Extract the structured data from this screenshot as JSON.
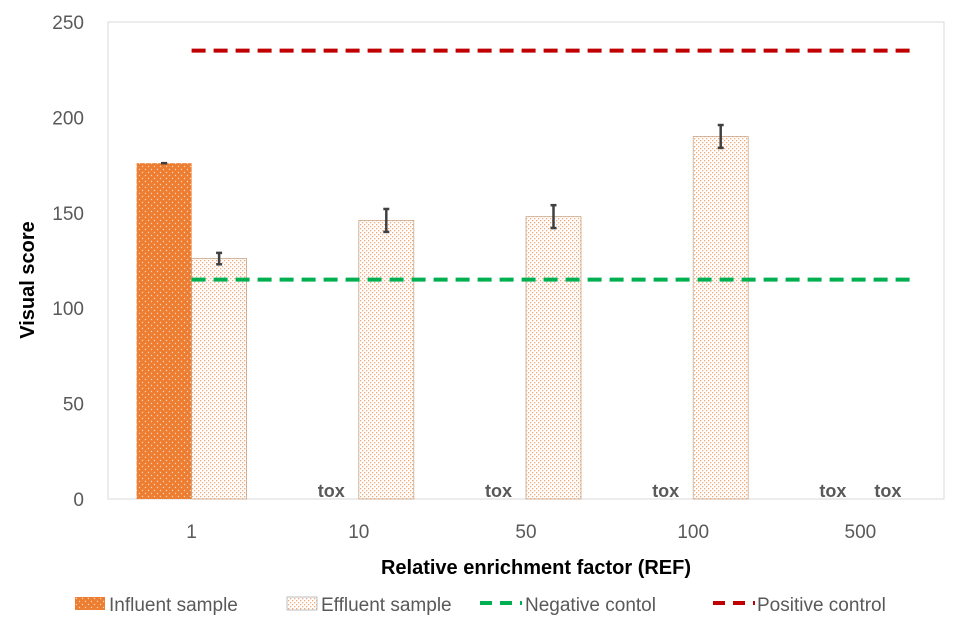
{
  "chart_data": {
    "type": "bar",
    "title": "",
    "xlabel": "Relative enrichment factor (REF)",
    "ylabel": "Visual score",
    "ylim": [
      0,
      250
    ],
    "yticks": [
      0,
      50,
      100,
      150,
      200,
      250
    ],
    "categories": [
      "1",
      "10",
      "50",
      "100",
      "500"
    ],
    "series": [
      {
        "name": "Influent sample",
        "values": [
          176,
          null,
          null,
          null,
          null
        ],
        "labels": [
          "",
          "tox",
          "tox",
          "tox",
          "tox"
        ],
        "errors": [
          0,
          null,
          null,
          null,
          null
        ],
        "color": "#ED7D31",
        "pattern": "dotted-solid"
      },
      {
        "name": "Effluent sample",
        "values": [
          126,
          146,
          148,
          190,
          null
        ],
        "labels": [
          "",
          "",
          "",
          "",
          "tox"
        ],
        "errors": [
          3,
          6,
          6,
          6,
          null
        ],
        "color": "#ED7D31",
        "pattern": "dotted-light"
      }
    ],
    "reference_lines": [
      {
        "name": "Negative contol",
        "value": 115,
        "color": "#00B050",
        "style": "dashed"
      },
      {
        "name": "Positive control",
        "value": 235,
        "color": "#C00000",
        "style": "dashed"
      }
    ],
    "grid": false,
    "legend": "bottom"
  }
}
